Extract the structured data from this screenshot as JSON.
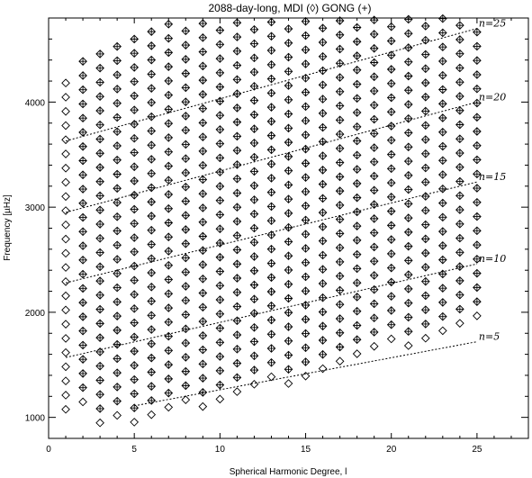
{
  "chart_data": {
    "type": "scatter",
    "title": "2088-day-long, MDI (◊) GONG (+)",
    "xlabel": "Spherical Harmonic Degree, l",
    "ylabel": "Frequency [µHz]",
    "xlim": [
      0,
      28
    ],
    "ylim": [
      800,
      4800
    ],
    "x_ticks": [
      0,
      5,
      10,
      15,
      20,
      25
    ],
    "y_ticks": [
      1000,
      2000,
      3000,
      4000
    ],
    "x_tick_labels": [
      "0",
      "5",
      "10",
      "15",
      "20",
      "25"
    ],
    "y_tick_labels": [
      "1000",
      "2000",
      "3000",
      "4000"
    ],
    "grid": false,
    "series": [
      {
        "name": "MDI",
        "marker": "diamond"
      },
      {
        "name": "GONG",
        "marker": "plus"
      }
    ],
    "mode_grid": {
      "l_range": [
        1,
        25
      ],
      "frequency_spacing_uHz": 135,
      "mdi_l_min": 1,
      "gong_l_min": 2,
      "ranges_by_l": [
        {
          "l": 1,
          "n_min": 6,
          "n_max": 29
        },
        {
          "l": 2,
          "n_min": 6,
          "n_max": 30
        },
        {
          "l": 3,
          "n_min": 4,
          "n_max": 30
        },
        {
          "l": 4,
          "n_min": 4,
          "n_max": 30
        },
        {
          "l": 5,
          "n_min": 3,
          "n_max": 30
        },
        {
          "l": 6,
          "n_min": 3,
          "n_max": 30
        },
        {
          "l": 7,
          "n_min": 3,
          "n_max": 30
        },
        {
          "l": 8,
          "n_min": 3,
          "n_max": 29
        },
        {
          "l": 9,
          "n_min": 2,
          "n_max": 29
        },
        {
          "l": 10,
          "n_min": 2,
          "n_max": 29
        },
        {
          "l": 11,
          "n_min": 2,
          "n_max": 29
        },
        {
          "l": 12,
          "n_min": 2,
          "n_max": 29
        },
        {
          "l": 13,
          "n_min": 2,
          "n_max": 28
        },
        {
          "l": 14,
          "n_min": 1,
          "n_max": 28
        },
        {
          "l": 15,
          "n_min": 1,
          "n_max": 28
        },
        {
          "l": 16,
          "n_min": 1,
          "n_max": 28
        },
        {
          "l": 17,
          "n_min": 1,
          "n_max": 28
        },
        {
          "l": 18,
          "n_min": 1,
          "n_max": 27
        },
        {
          "l": 19,
          "n_min": 1,
          "n_max": 27
        },
        {
          "l": 20,
          "n_min": 1,
          "n_max": 27
        },
        {
          "l": 21,
          "n_min": 0,
          "n_max": 27
        },
        {
          "l": 22,
          "n_min": 0,
          "n_max": 27
        },
        {
          "l": 23,
          "n_min": 0,
          "n_max": 26
        },
        {
          "l": 24,
          "n_min": 0,
          "n_max": 26
        },
        {
          "l": 25,
          "n_min": 0,
          "n_max": 26
        }
      ]
    },
    "ridges": [
      {
        "label": "n=5",
        "l_start": 5,
        "l_end": 25,
        "freq_start": 1110,
        "freq_end": 1720
      },
      {
        "label": "n=10",
        "l_start": 1,
        "l_end": 25,
        "freq_start": 1570,
        "freq_end": 2460
      },
      {
        "label": "n=15",
        "l_start": 1,
        "l_end": 25,
        "freq_start": 2280,
        "freq_end": 3240
      },
      {
        "label": "n=20",
        "l_start": 1,
        "l_end": 25,
        "freq_start": 2950,
        "freq_end": 4000
      },
      {
        "label": "n=25",
        "l_start": 1,
        "l_end": 25,
        "freq_start": 3630,
        "freq_end": 4700
      }
    ]
  }
}
